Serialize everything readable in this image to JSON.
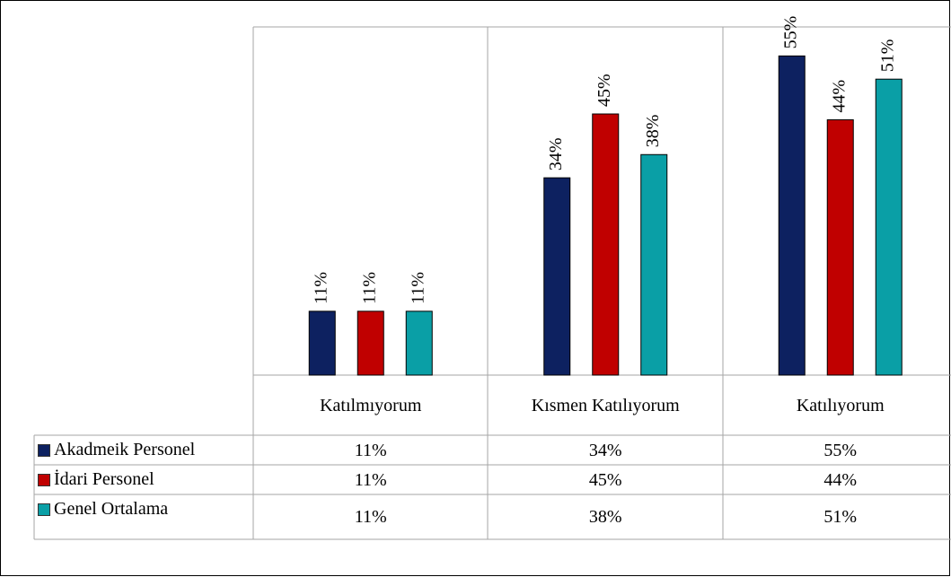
{
  "chart_data": {
    "type": "bar",
    "categories": [
      "Katılmıyorum",
      "Kısmen Katılıyorum",
      "Katılıyorum"
    ],
    "series": [
      {
        "name": "Akadmeik Personel",
        "color": "#0d2160",
        "values": [
          11,
          34,
          55
        ],
        "value_labels": [
          "11%",
          "34%",
          "55%"
        ]
      },
      {
        "name": "İdari Personel",
        "color": "#c00000",
        "values": [
          11,
          45,
          44
        ],
        "value_labels": [
          "11%",
          "45%",
          "44%"
        ]
      },
      {
        "name": "Genel Ortalama",
        "color": "#0a9fa6",
        "values": [
          11,
          38,
          51
        ],
        "value_labels": [
          "11%",
          "38%",
          "51%"
        ]
      }
    ],
    "ylim": [
      0,
      60
    ]
  }
}
